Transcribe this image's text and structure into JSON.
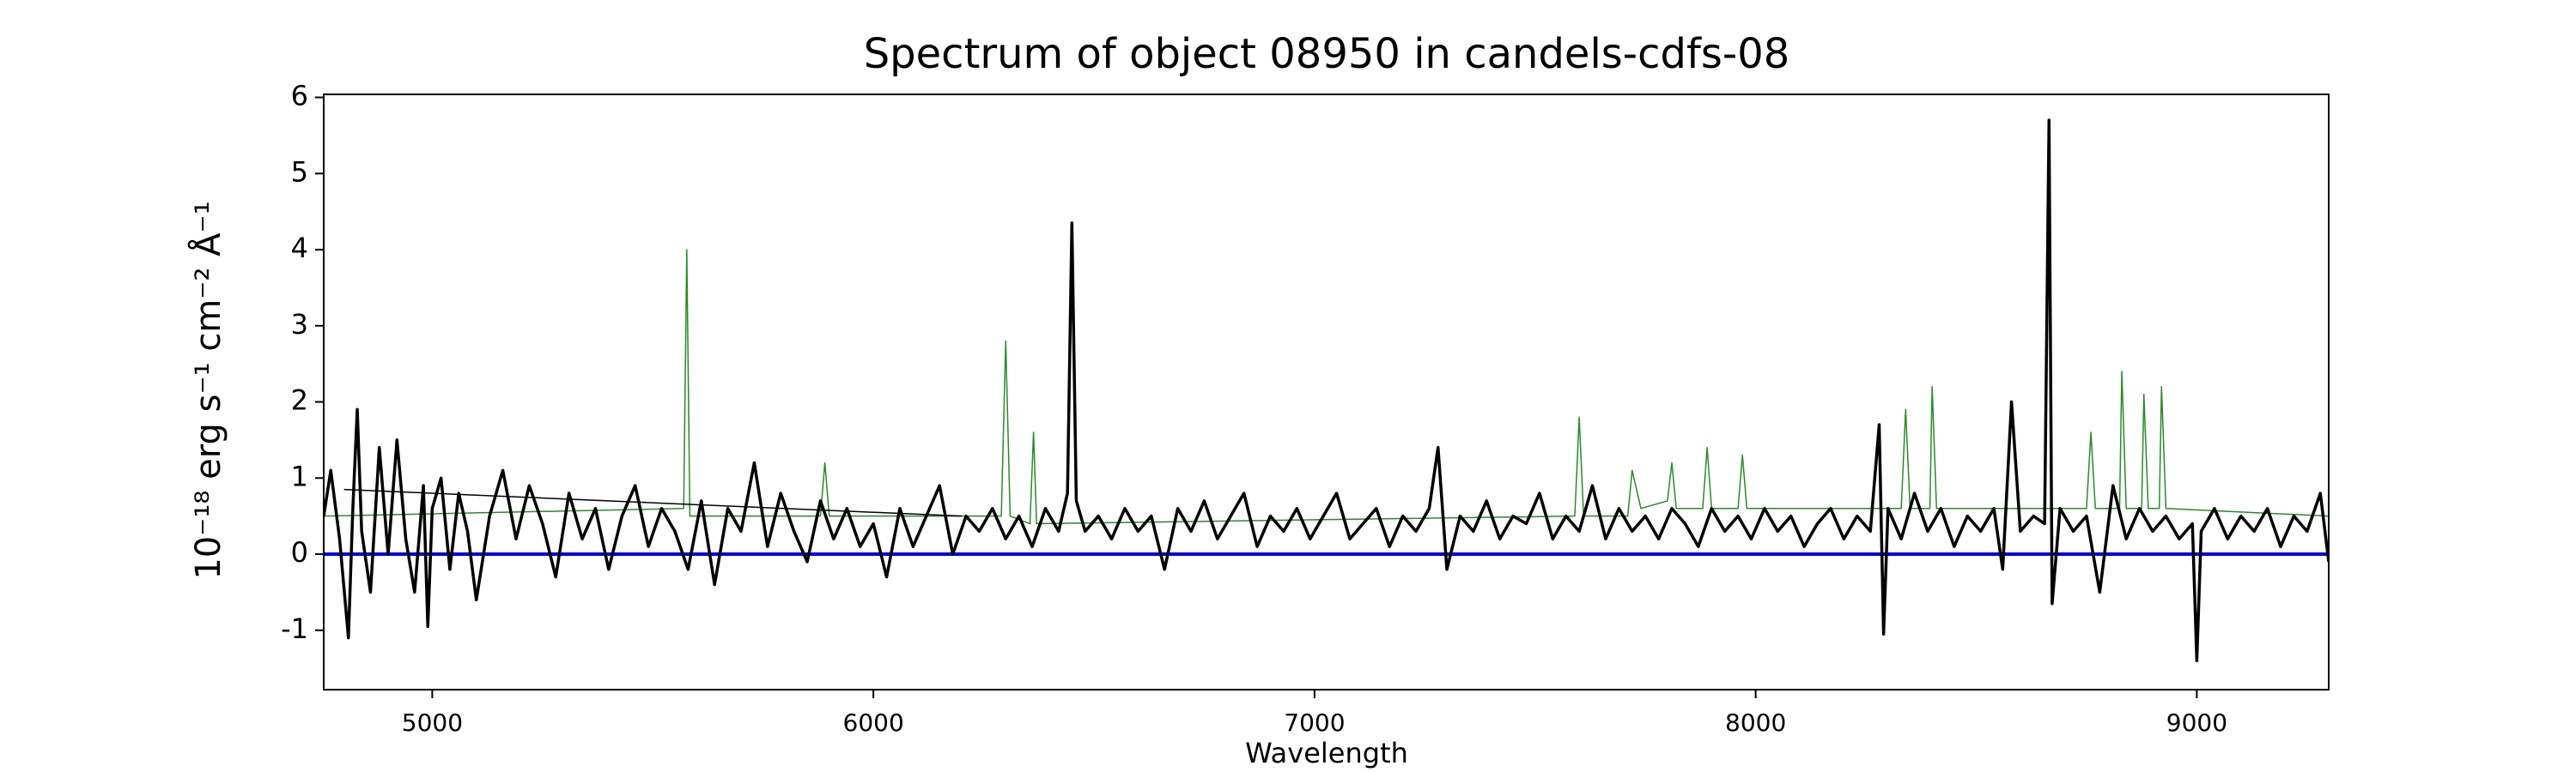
{
  "chart_data": {
    "type": "line",
    "title": "Spectrum of object 08950 in candels-cdfs-08",
    "xlabel": "Wavelength",
    "ylabel": "10⁻¹⁸ erg s⁻¹ cm⁻² Å⁻¹",
    "xlim": [
      4754,
      9299
    ],
    "ylim": [
      -1.78,
      6.04
    ],
    "xticks": [
      5000,
      6000,
      7000,
      8000,
      9000
    ],
    "yticks": [
      -1,
      0,
      1,
      2,
      3,
      4,
      5,
      6
    ],
    "series": [
      {
        "color": "#2a8a2a",
        "x": [
          4754,
          5570,
          5577,
          5584,
          5880,
          5890,
          5900,
          6290,
          6300,
          6310,
          6355,
          6363,
          6370,
          7590,
          7600,
          7610,
          7710,
          7720,
          7740,
          7800,
          7810,
          7820,
          7880,
          7890,
          7900,
          7960,
          7970,
          7980,
          8330,
          8340,
          8350,
          8395,
          8400,
          8410,
          8750,
          8760,
          8770,
          8825,
          8830,
          8840,
          8875,
          8880,
          8890,
          8915,
          8920,
          8930,
          9299
        ],
        "values": [
          0.5,
          0.6,
          4.0,
          0.5,
          0.5,
          1.2,
          0.5,
          0.5,
          2.8,
          0.5,
          0.4,
          1.6,
          0.4,
          0.5,
          1.8,
          0.5,
          0.5,
          1.1,
          0.6,
          0.7,
          1.2,
          0.6,
          0.6,
          1.4,
          0.6,
          0.6,
          1.3,
          0.6,
          0.6,
          1.9,
          0.6,
          0.6,
          2.2,
          0.6,
          0.6,
          1.6,
          0.6,
          0.6,
          2.4,
          0.6,
          0.6,
          2.1,
          0.6,
          0.6,
          2.2,
          0.6,
          0.5
        ]
      },
      {
        "color": "#000000",
        "x": [
          4800,
          6200
        ],
        "values": [
          0.85,
          0.5
        ]
      },
      {
        "color": "#0000dd",
        "x": [
          4754,
          9299
        ],
        "values": [
          0,
          0
        ]
      },
      {
        "color": "#000000",
        "x": [
          4754,
          4770,
          4790,
          4810,
          4820,
          4830,
          4840,
          4860,
          4880,
          4900,
          4920,
          4940,
          4960,
          4980,
          4990,
          5000,
          5020,
          5040,
          5060,
          5080,
          5100,
          5130,
          5160,
          5190,
          5220,
          5250,
          5280,
          5310,
          5340,
          5370,
          5400,
          5430,
          5460,
          5490,
          5520,
          5550,
          5580,
          5610,
          5640,
          5670,
          5700,
          5730,
          5760,
          5790,
          5820,
          5850,
          5880,
          5910,
          5940,
          5970,
          6000,
          6030,
          6060,
          6090,
          6120,
          6150,
          6180,
          6210,
          6240,
          6270,
          6300,
          6330,
          6360,
          6390,
          6420,
          6440,
          6450,
          6460,
          6480,
          6510,
          6540,
          6570,
          6600,
          6630,
          6660,
          6690,
          6720,
          6750,
          6780,
          6810,
          6840,
          6870,
          6900,
          6930,
          6960,
          6990,
          7020,
          7050,
          7080,
          7110,
          7140,
          7170,
          7200,
          7230,
          7260,
          7280,
          7300,
          7330,
          7360,
          7390,
          7420,
          7450,
          7480,
          7510,
          7540,
          7570,
          7600,
          7630,
          7660,
          7690,
          7720,
          7750,
          7780,
          7810,
          7840,
          7870,
          7900,
          7930,
          7960,
          7990,
          8020,
          8050,
          8080,
          8110,
          8140,
          8170,
          8200,
          8230,
          8260,
          8280,
          8290,
          8300,
          8330,
          8360,
          8390,
          8420,
          8450,
          8480,
          8510,
          8540,
          8560,
          8580,
          8600,
          8630,
          8655,
          8665,
          8672,
          8690,
          8720,
          8750,
          8780,
          8810,
          8840,
          8870,
          8900,
          8930,
          8960,
          8990,
          9000,
          9010,
          9040,
          9070,
          9100,
          9130,
          9160,
          9190,
          9220,
          9250,
          9280,
          9299
        ],
        "values": [
          0.5,
          1.1,
          0.2,
          -1.1,
          0.6,
          1.9,
          0.3,
          -0.5,
          1.4,
          0.0,
          1.5,
          0.2,
          -0.5,
          0.9,
          -0.95,
          0.6,
          1.0,
          -0.2,
          0.8,
          0.3,
          -0.6,
          0.5,
          1.1,
          0.2,
          0.9,
          0.4,
          -0.3,
          0.8,
          0.2,
          0.6,
          -0.2,
          0.5,
          0.9,
          0.1,
          0.6,
          0.3,
          -0.2,
          0.7,
          -0.4,
          0.6,
          0.3,
          1.2,
          0.1,
          0.8,
          0.3,
          -0.1,
          0.7,
          0.2,
          0.6,
          0.1,
          0.4,
          -0.3,
          0.6,
          0.1,
          0.5,
          0.9,
          0.0,
          0.5,
          0.3,
          0.6,
          0.2,
          0.5,
          0.1,
          0.6,
          0.3,
          0.8,
          4.35,
          0.7,
          0.3,
          0.5,
          0.2,
          0.6,
          0.3,
          0.5,
          -0.2,
          0.6,
          0.3,
          0.7,
          0.2,
          0.5,
          0.8,
          0.1,
          0.5,
          0.3,
          0.6,
          0.2,
          0.5,
          0.8,
          0.2,
          0.4,
          0.6,
          0.1,
          0.5,
          0.3,
          0.6,
          1.4,
          -0.2,
          0.5,
          0.3,
          0.7,
          0.2,
          0.5,
          0.4,
          0.8,
          0.2,
          0.5,
          0.3,
          0.9,
          0.2,
          0.6,
          0.3,
          0.5,
          0.2,
          0.6,
          0.4,
          0.1,
          0.6,
          0.3,
          0.5,
          0.2,
          0.6,
          0.3,
          0.5,
          0.1,
          0.4,
          0.6,
          0.2,
          0.5,
          0.3,
          1.7,
          -1.05,
          0.6,
          0.2,
          0.8,
          0.3,
          0.6,
          0.1,
          0.5,
          0.3,
          0.6,
          -0.2,
          2.0,
          0.3,
          0.5,
          0.4,
          5.7,
          -0.65,
          0.6,
          0.3,
          0.5,
          -0.5,
          0.9,
          0.2,
          0.6,
          0.3,
          0.5,
          0.2,
          0.4,
          -1.4,
          0.3,
          0.6,
          0.2,
          0.5,
          0.3,
          0.6,
          0.1,
          0.5,
          0.3,
          0.8,
          -0.1
        ]
      }
    ]
  }
}
